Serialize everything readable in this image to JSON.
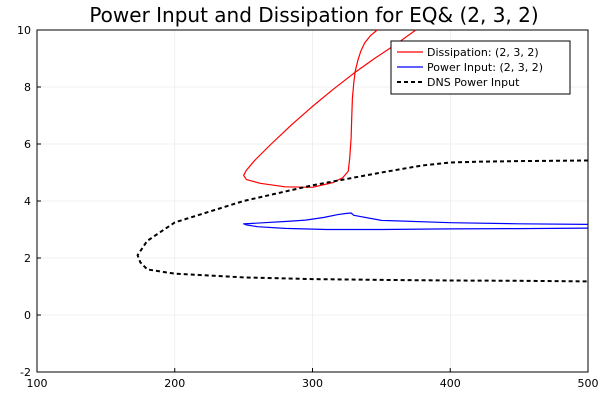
{
  "chart_data": {
    "type": "line",
    "title": "Power Input and Dissipation for EQ& (2, 3, 2)",
    "xlabel": "",
    "ylabel": "",
    "xlim": [
      100,
      500
    ],
    "ylim": [
      -2,
      10
    ],
    "xticks": [
      100,
      200,
      300,
      400,
      500
    ],
    "yticks": [
      -2,
      0,
      2,
      4,
      6,
      8,
      10
    ],
    "xtick_labels": [
      "100",
      "200",
      "300",
      "400",
      "500"
    ],
    "ytick_labels": [
      "-2",
      "0",
      "2",
      "4",
      "6",
      "8",
      "10"
    ],
    "grid": true,
    "legend_position": "top-right",
    "series": [
      {
        "name": "Dissipation: (2, 3, 2)",
        "color": "#ff0000",
        "dash": "solid",
        "x": [
          375,
          360,
          345,
          330,
          315,
          300,
          285,
          270,
          258,
          252,
          250,
          252,
          262,
          280,
          300,
          315,
          322,
          326,
          327,
          328,
          328.5,
          329,
          330,
          331,
          333,
          335,
          338,
          342,
          347
        ],
        "y": [
          10.0,
          9.48,
          9.0,
          8.48,
          7.92,
          7.32,
          6.68,
          6.0,
          5.42,
          5.08,
          4.9,
          4.75,
          4.62,
          4.5,
          4.48,
          4.65,
          4.82,
          5.05,
          5.5,
          6.2,
          7.0,
          7.6,
          8.15,
          8.55,
          8.95,
          9.25,
          9.55,
          9.8,
          10.0
        ]
      },
      {
        "name": "Power Input: (2, 3, 2)",
        "color": "#0000ff",
        "dash": "solid",
        "x": [
          500,
          450,
          400,
          350,
          330,
          328,
          324,
          318,
          308,
          295,
          280,
          265,
          255,
          250,
          252,
          260,
          280,
          310,
          350,
          400,
          450,
          500
        ],
        "y": [
          3.18,
          3.2,
          3.24,
          3.32,
          3.5,
          3.58,
          3.56,
          3.52,
          3.42,
          3.33,
          3.28,
          3.24,
          3.21,
          3.2,
          3.16,
          3.1,
          3.04,
          3.0,
          3.0,
          3.02,
          3.03,
          3.05
        ]
      },
      {
        "name": "DNS Power Input",
        "color": "#000000",
        "dash": "dashed",
        "x": [
          500,
          450,
          420,
          400,
          380,
          350,
          300,
          250,
          200,
          180,
          173,
          175,
          180,
          200,
          250,
          300,
          350,
          400,
          450,
          500
        ],
        "y": [
          5.42,
          5.4,
          5.38,
          5.35,
          5.25,
          5.0,
          4.55,
          4.0,
          3.25,
          2.6,
          2.1,
          1.85,
          1.6,
          1.45,
          1.32,
          1.26,
          1.23,
          1.21,
          1.2,
          1.18
        ]
      }
    ]
  }
}
